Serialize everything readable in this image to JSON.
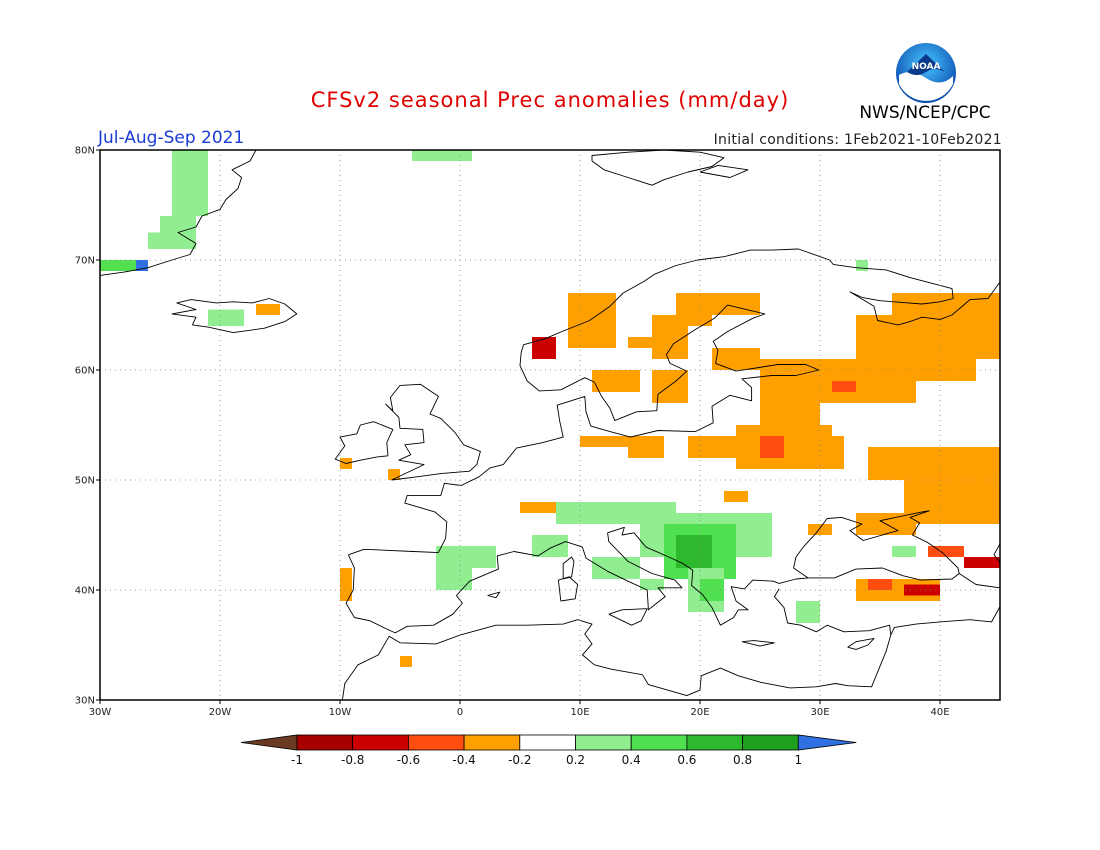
{
  "header": {
    "title": "CFSv2 seasonal Prec anomalies (mm/day)",
    "period": "Jul-Aug-Sep 2021",
    "initial_conditions": "Initial conditions: 1Feb2021-10Feb2021",
    "agency": "NWS/NCEP/CPC",
    "logo_text": "NOAA"
  },
  "map": {
    "projection": "equirectangular",
    "lon_range": [
      -30,
      45
    ],
    "lat_range": [
      30,
      80
    ],
    "lat_ticks": [
      "30N",
      "40N",
      "50N",
      "60N",
      "70N",
      "80N"
    ],
    "lon_ticks": [
      "30W",
      "20W",
      "10W",
      "0",
      "10E",
      "20E",
      "30E",
      "40E"
    ],
    "grid": true,
    "units": "mm/day"
  },
  "colorbar": {
    "labels": [
      "-1",
      "-0.8",
      "-0.6",
      "-0.4",
      "-0.2",
      "0.2",
      "0.4",
      "0.6",
      "0.8",
      "1"
    ],
    "colors": [
      "#6b3a22",
      "#a80000",
      "#cc0000",
      "#ff4e10",
      "#ffa000",
      "#ffffff",
      "#90ee90",
      "#50e050",
      "#2eb82e",
      "#1ea01e",
      "#3070e0"
    ]
  },
  "anomalies": {
    "colors": {
      "o1": "#ffa000",
      "o2": "#ff4e10",
      "o3": "#cc0000",
      "g1": "#90ee90",
      "g2": "#50e050",
      "g3": "#2eb82e",
      "b1": "#3070e0"
    },
    "regions": [
      {
        "lon": [
          -24,
          -21
        ],
        "lat": [
          74,
          80
        ],
        "cls": "g1"
      },
      {
        "lon": [
          -25,
          -22
        ],
        "lat": [
          72,
          74
        ],
        "cls": "g1"
      },
      {
        "lon": [
          -26,
          -22
        ],
        "lat": [
          71,
          72.5
        ],
        "cls": "g1"
      },
      {
        "lon": [
          -30,
          -26
        ],
        "lat": [
          69,
          70
        ],
        "cls": "g2"
      },
      {
        "lon": [
          -27,
          -26
        ],
        "lat": [
          69,
          70
        ],
        "cls": "b1"
      },
      {
        "lon": [
          -21,
          -18
        ],
        "lat": [
          64,
          65.5
        ],
        "cls": "g1"
      },
      {
        "lon": [
          -17,
          -15
        ],
        "lat": [
          65,
          66
        ],
        "cls": "o1"
      },
      {
        "lon": [
          -4,
          1
        ],
        "lat": [
          79,
          80
        ],
        "cls": "g1"
      },
      {
        "lon": [
          9,
          13
        ],
        "lat": [
          62,
          67
        ],
        "cls": "o1"
      },
      {
        "lon": [
          6,
          8
        ],
        "lat": [
          61,
          63
        ],
        "cls": "o3"
      },
      {
        "lon": [
          14,
          16
        ],
        "lat": [
          62,
          63
        ],
        "cls": "o1"
      },
      {
        "lon": [
          16,
          19
        ],
        "lat": [
          61,
          65
        ],
        "cls": "o1"
      },
      {
        "lon": [
          18,
          21
        ],
        "lat": [
          64,
          67
        ],
        "cls": "o1"
      },
      {
        "lon": [
          20,
          25
        ],
        "lat": [
          65,
          67
        ],
        "cls": "o1"
      },
      {
        "lon": [
          11,
          15
        ],
        "lat": [
          58,
          60
        ],
        "cls": "o1"
      },
      {
        "lon": [
          16,
          19
        ],
        "lat": [
          57,
          60
        ],
        "cls": "o1"
      },
      {
        "lon": [
          21,
          25
        ],
        "lat": [
          60,
          62
        ],
        "cls": "o1"
      },
      {
        "lon": [
          25,
          38
        ],
        "lat": [
          57,
          61
        ],
        "cls": "o1"
      },
      {
        "lon": [
          33,
          43
        ],
        "lat": [
          59,
          65
        ],
        "cls": "o1"
      },
      {
        "lon": [
          36,
          45
        ],
        "lat": [
          61,
          67
        ],
        "cls": "o1"
      },
      {
        "lon": [
          31,
          33
        ],
        "lat": [
          58,
          59
        ],
        "cls": "o2"
      },
      {
        "lon": [
          14,
          17
        ],
        "lat": [
          52,
          54
        ],
        "cls": "o1"
      },
      {
        "lon": [
          19,
          24
        ],
        "lat": [
          52,
          54
        ],
        "cls": "o1"
      },
      {
        "lon": [
          23,
          31
        ],
        "lat": [
          51,
          55
        ],
        "cls": "o1"
      },
      {
        "lon": [
          25,
          30
        ],
        "lat": [
          53,
          57
        ],
        "cls": "o1"
      },
      {
        "lon": [
          28,
          32
        ],
        "lat": [
          51,
          54
        ],
        "cls": "o1"
      },
      {
        "lon": [
          25,
          27
        ],
        "lat": [
          52,
          54
        ],
        "cls": "o2"
      },
      {
        "lon": [
          10,
          14
        ],
        "lat": [
          53,
          54
        ],
        "cls": "o1"
      },
      {
        "lon": [
          34,
          45
        ],
        "lat": [
          50,
          53
        ],
        "cls": "o1"
      },
      {
        "lon": [
          37,
          45
        ],
        "lat": [
          46,
          52
        ],
        "cls": "o1"
      },
      {
        "lon": [
          33,
          38
        ],
        "lat": [
          45,
          47
        ],
        "cls": "o1"
      },
      {
        "lon": [
          29,
          31
        ],
        "lat": [
          45,
          46
        ],
        "cls": "o1"
      },
      {
        "lon": [
          39,
          42
        ],
        "lat": [
          43,
          44
        ],
        "cls": "o2"
      },
      {
        "lon": [
          42,
          45
        ],
        "lat": [
          42,
          43
        ],
        "cls": "o3"
      },
      {
        "lon": [
          33,
          40
        ],
        "lat": [
          39,
          41
        ],
        "cls": "o1"
      },
      {
        "lon": [
          34,
          36
        ],
        "lat": [
          40,
          41
        ],
        "cls": "o2"
      },
      {
        "lon": [
          37,
          40
        ],
        "lat": [
          39.5,
          40.5
        ],
        "cls": "o3"
      },
      {
        "lon": [
          5,
          8
        ],
        "lat": [
          47,
          48
        ],
        "cls": "o1"
      },
      {
        "lon": [
          22,
          24
        ],
        "lat": [
          48,
          49
        ],
        "cls": "o1"
      },
      {
        "lon": [
          -10,
          -9
        ],
        "lat": [
          39,
          42
        ],
        "cls": "o1"
      },
      {
        "lon": [
          -5,
          -4
        ],
        "lat": [
          33,
          34
        ],
        "cls": "o1"
      },
      {
        "lon": [
          -6,
          -5
        ],
        "lat": [
          50,
          51
        ],
        "cls": "o1"
      },
      {
        "lon": [
          -10,
          -9
        ],
        "lat": [
          51,
          52
        ],
        "cls": "o1"
      },
      {
        "lon": [
          8,
          18
        ],
        "lat": [
          46,
          48
        ],
        "cls": "g1"
      },
      {
        "lon": [
          15,
          26
        ],
        "lat": [
          43,
          47
        ],
        "cls": "g1"
      },
      {
        "lon": [
          17,
          23
        ],
        "lat": [
          41,
          46
        ],
        "cls": "g2"
      },
      {
        "lon": [
          18,
          21
        ],
        "lat": [
          42,
          45
        ],
        "cls": "g3"
      },
      {
        "lon": [
          19,
          22
        ],
        "lat": [
          38,
          42
        ],
        "cls": "g1"
      },
      {
        "lon": [
          20,
          22
        ],
        "lat": [
          39,
          41
        ],
        "cls": "g2"
      },
      {
        "lon": [
          11,
          15
        ],
        "lat": [
          41,
          43
        ],
        "cls": "g1"
      },
      {
        "lon": [
          15,
          17
        ],
        "lat": [
          40,
          41
        ],
        "cls": "g1"
      },
      {
        "lon": [
          -2,
          3
        ],
        "lat": [
          42,
          44
        ],
        "cls": "g1"
      },
      {
        "lon": [
          -2,
          1
        ],
        "lat": [
          40,
          42
        ],
        "cls": "g1"
      },
      {
        "lon": [
          6,
          9
        ],
        "lat": [
          43,
          45
        ],
        "cls": "g1"
      },
      {
        "lon": [
          28,
          30
        ],
        "lat": [
          37,
          39
        ],
        "cls": "g1"
      },
      {
        "lon": [
          36,
          38
        ],
        "lat": [
          43,
          44
        ],
        "cls": "g1"
      },
      {
        "lon": [
          33,
          34
        ],
        "lat": [
          69,
          70
        ],
        "cls": "g1"
      }
    ]
  }
}
